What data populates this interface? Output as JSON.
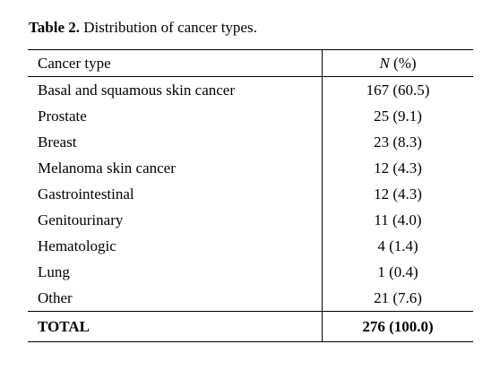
{
  "caption": {
    "label": "Table 2.",
    "text": "Distribution of cancer types."
  },
  "table": {
    "headers": {
      "col1": "Cancer type",
      "col2_italic": "N",
      "col2_rest": " (%)"
    },
    "rows": [
      {
        "type": "Basal and squamous skin cancer",
        "value": "167 (60.5)"
      },
      {
        "type": "Prostate",
        "value": "25 (9.1)"
      },
      {
        "type": "Breast",
        "value": "23 (8.3)"
      },
      {
        "type": "Melanoma skin cancer",
        "value": "12 (4.3)"
      },
      {
        "type": "Gastrointestinal",
        "value": "12 (4.3)"
      },
      {
        "type": "Genitourinary",
        "value": "11 (4.0)"
      },
      {
        "type": "Hematologic",
        "value": "4 (1.4)"
      },
      {
        "type": "Lung",
        "value": "1 (0.4)"
      },
      {
        "type": "Other",
        "value": "21 (7.6)"
      }
    ],
    "total": {
      "type": "TOTAL",
      "value": "276 (100.0)"
    }
  }
}
